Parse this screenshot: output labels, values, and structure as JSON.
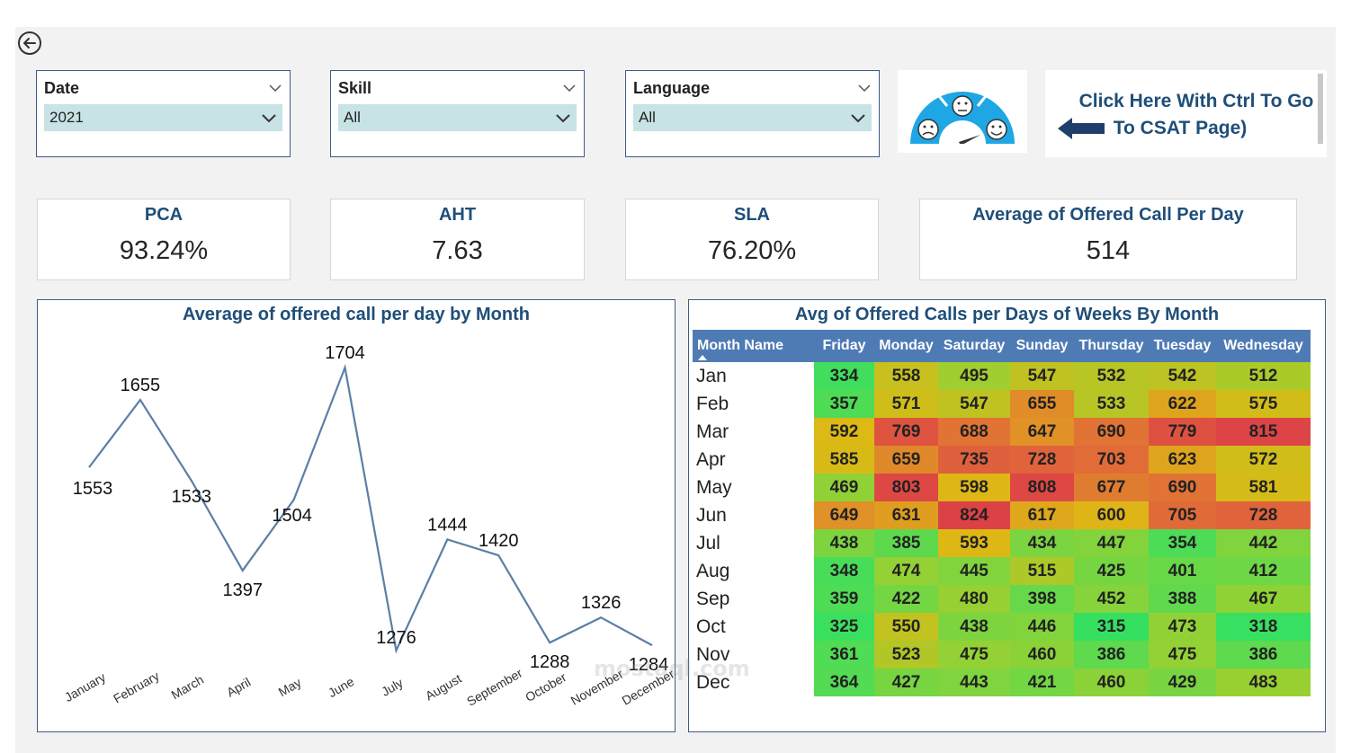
{
  "slicers": [
    {
      "label": "Date",
      "value": "2021"
    },
    {
      "label": "Skill",
      "value": "All"
    },
    {
      "label": "Language",
      "value": "All"
    }
  ],
  "nav": {
    "line1": "Click Here With Ctrl To Go",
    "line2": "To CSAT Page)"
  },
  "kpis": [
    {
      "label": "PCA",
      "value": "93.24%"
    },
    {
      "label": "AHT",
      "value": "7.63"
    },
    {
      "label": "SLA",
      "value": "76.20%"
    },
    {
      "label": "Average of Offered Call Per Day",
      "value": "514"
    }
  ],
  "chart_data": {
    "type": "line",
    "title": "Average of offered call per day by Month",
    "categories": [
      "January",
      "February",
      "March",
      "April",
      "May",
      "June",
      "July",
      "August",
      "September",
      "October",
      "November",
      "December"
    ],
    "values": [
      1553,
      1655,
      1533,
      1397,
      1504,
      1704,
      1276,
      1444,
      1420,
      1288,
      1326,
      1284
    ],
    "color": "#5b7fa6",
    "grid": false
  },
  "matrix": {
    "title": "Avg of Offered Calls per Days of Weeks By Month",
    "row_header": "Month Name",
    "columns": [
      "Friday",
      "Monday",
      "Saturday",
      "Sunday",
      "Thursday",
      "Tuesday",
      "Wednesday"
    ],
    "rows": [
      {
        "month": "Jan",
        "values": [
          334,
          558,
          495,
          547,
          532,
          542,
          512
        ]
      },
      {
        "month": "Feb",
        "values": [
          357,
          571,
          547,
          655,
          533,
          622,
          575
        ]
      },
      {
        "month": "Mar",
        "values": [
          592,
          769,
          688,
          647,
          690,
          779,
          815
        ]
      },
      {
        "month": "Apr",
        "values": [
          585,
          659,
          735,
          728,
          703,
          623,
          572
        ]
      },
      {
        "month": "May",
        "values": [
          469,
          803,
          598,
          808,
          677,
          690,
          581
        ]
      },
      {
        "month": "Jun",
        "values": [
          649,
          631,
          824,
          617,
          600,
          705,
          728
        ]
      },
      {
        "month": "Jul",
        "values": [
          438,
          385,
          593,
          434,
          447,
          354,
          442
        ]
      },
      {
        "month": "Aug",
        "values": [
          348,
          474,
          445,
          515,
          425,
          401,
          412
        ]
      },
      {
        "month": "Sep",
        "values": [
          359,
          422,
          480,
          398,
          452,
          388,
          467
        ]
      },
      {
        "month": "Oct",
        "values": [
          325,
          550,
          438,
          446,
          315,
          473,
          318
        ]
      },
      {
        "month": "Nov",
        "values": [
          361,
          523,
          475,
          460,
          386,
          475,
          386
        ]
      },
      {
        "month": "Dec",
        "values": [
          364,
          427,
          443,
          421,
          460,
          429,
          483
        ]
      }
    ]
  },
  "watermark": "mostaql.com"
}
